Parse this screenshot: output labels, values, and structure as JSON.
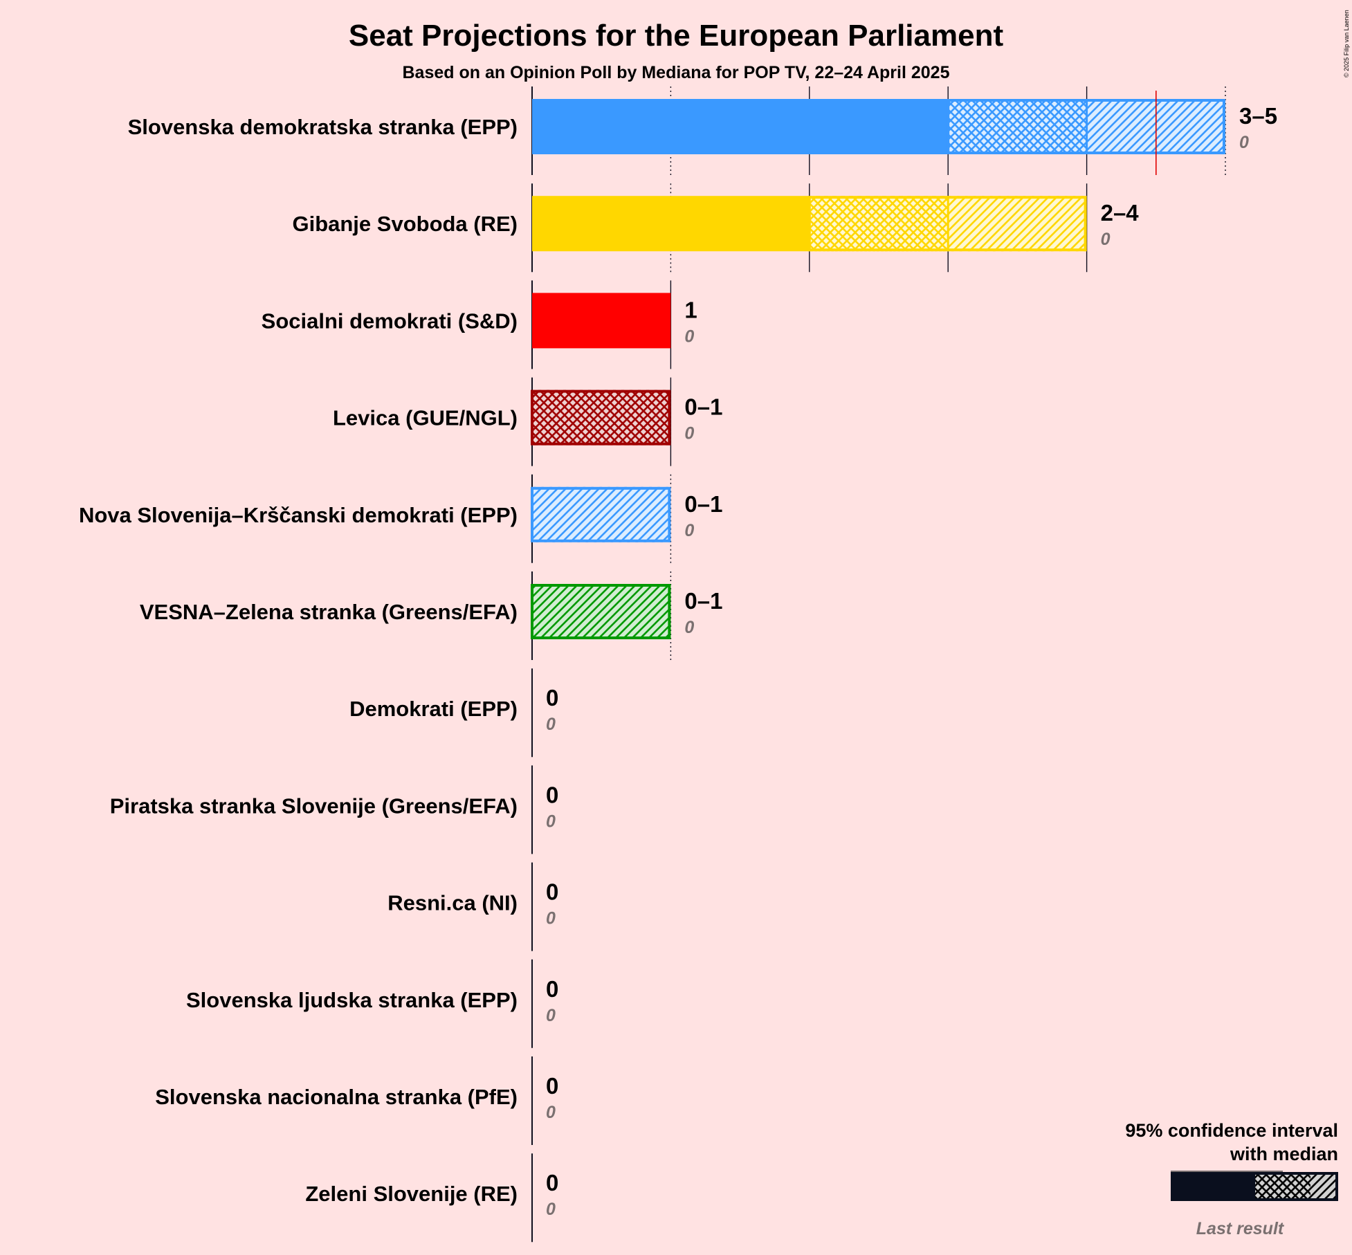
{
  "title": "Seat Projections for the European Parliament",
  "subtitle": "Based on an Opinion Poll by Mediana for POP TV, 22–24 April 2025",
  "copyright": "© 2025 Filip van Laenen",
  "legend": {
    "line1": "95% confidence interval",
    "line2": "with median",
    "last_result": "Last result"
  },
  "chart_data": {
    "type": "bar",
    "orientation": "horizontal",
    "title": "Seat Projections for the European Parliament",
    "subtitle": "Based on an Opinion Poll by Mediana for POP TV, 22–24 April 2025",
    "xlim": [
      0,
      5
    ],
    "unit": "seats",
    "majority_line": 4.5,
    "parties": [
      {
        "name": "Slovenska demokratska stranka (EPP)",
        "low": 3,
        "median": 4,
        "high": 5,
        "range_label": "3–5",
        "last_result": 0,
        "last_label": "0",
        "color": "#3a99ff"
      },
      {
        "name": "Gibanje Svoboda (RE)",
        "low": 2,
        "median": 3,
        "high": 4,
        "range_label": "2–4",
        "last_result": 0,
        "last_label": "0",
        "color": "#ffd700"
      },
      {
        "name": "Socialni demokrati (S&D)",
        "low": 1,
        "median": 1,
        "high": 1,
        "range_label": "1",
        "last_result": 0,
        "last_label": "0",
        "color": "#ff0000"
      },
      {
        "name": "Levica (GUE/NGL)",
        "low": 0,
        "median": 1,
        "high": 1,
        "range_label": "0–1",
        "last_result": 0,
        "last_label": "0",
        "color": "#a00000"
      },
      {
        "name": "Nova Slovenija–Krščanski demokrati (EPP)",
        "low": 0,
        "median": 0,
        "high": 1,
        "range_label": "0–1",
        "last_result": 0,
        "last_label": "0",
        "color": "#3a99ff"
      },
      {
        "name": "VESNA–Zelena stranka (Greens/EFA)",
        "low": 0,
        "median": 0,
        "high": 1,
        "range_label": "0–1",
        "last_result": 0,
        "last_label": "0",
        "color": "#009900"
      },
      {
        "name": "Demokrati (EPP)",
        "low": 0,
        "median": 0,
        "high": 0,
        "range_label": "0",
        "last_result": 0,
        "last_label": "0",
        "color": "#3a99ff"
      },
      {
        "name": "Piratska stranka Slovenije (Greens/EFA)",
        "low": 0,
        "median": 0,
        "high": 0,
        "range_label": "0",
        "last_result": 0,
        "last_label": "0",
        "color": "#000000"
      },
      {
        "name": "Resni.ca (NI)",
        "low": 0,
        "median": 0,
        "high": 0,
        "range_label": "0",
        "last_result": 0,
        "last_label": "0",
        "color": "#888888"
      },
      {
        "name": "Slovenska ljudska stranka (EPP)",
        "low": 0,
        "median": 0,
        "high": 0,
        "range_label": "0",
        "last_result": 0,
        "last_label": "0",
        "color": "#3a99ff"
      },
      {
        "name": "Slovenska nacionalna stranka (PfE)",
        "low": 0,
        "median": 0,
        "high": 0,
        "range_label": "0",
        "last_result": 0,
        "last_label": "0",
        "color": "#202080"
      },
      {
        "name": "Zeleni Slovenije (RE)",
        "low": 0,
        "median": 0,
        "high": 0,
        "range_label": "0",
        "last_result": 0,
        "last_label": "0",
        "color": "#00aa00"
      }
    ]
  }
}
